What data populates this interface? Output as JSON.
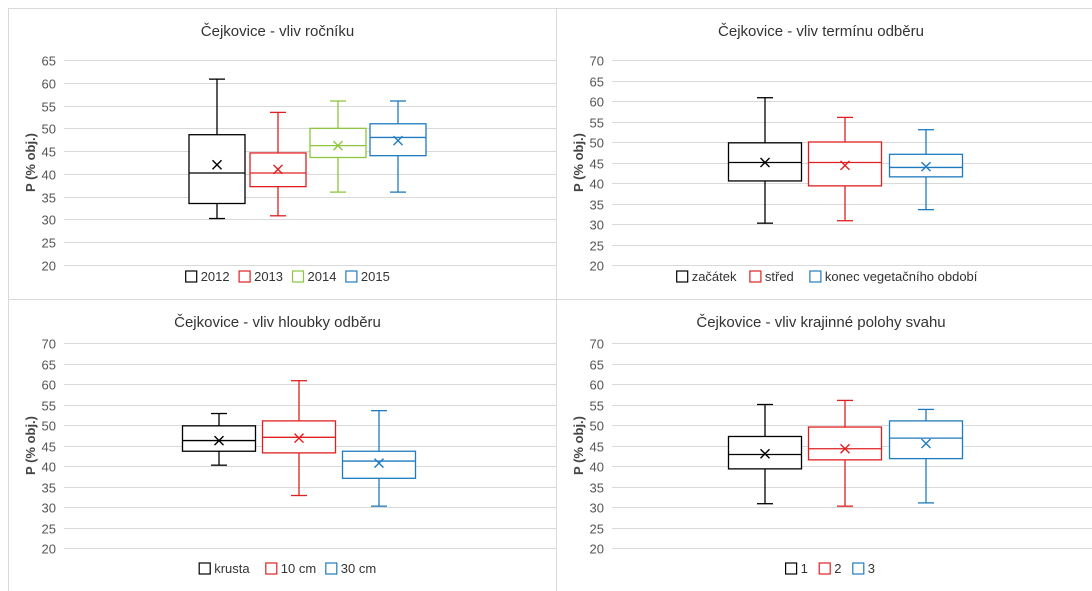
{
  "chart_data": [
    {
      "type": "box",
      "title": "Čejkovice - vliv ročníku",
      "ylabel": "P (% obj.)",
      "xlabel": "",
      "ylim": [
        20,
        65
      ],
      "yticks": [
        20,
        25,
        30,
        35,
        40,
        45,
        50,
        55,
        60,
        65
      ],
      "grid": true,
      "legend": "bottom",
      "series": [
        {
          "name": "2012",
          "color": "#000000",
          "min": 30.2,
          "q1": 33.5,
          "median": 40.2,
          "q3": 48.6,
          "max": 60.8,
          "mean": 42.0
        },
        {
          "name": "2013",
          "color": "#e02020",
          "min": 30.8,
          "q1": 37.2,
          "median": 40.2,
          "q3": 44.6,
          "max": 53.5,
          "mean": 41.0
        },
        {
          "name": "2014",
          "color": "#8dc63f",
          "min": 36.0,
          "q1": 43.6,
          "median": 46.2,
          "q3": 50.0,
          "max": 56.0,
          "mean": 46.2
        },
        {
          "name": "2015",
          "color": "#1f7bbf",
          "min": 36.0,
          "q1": 44.0,
          "median": 48.0,
          "q3": 51.0,
          "max": 56.0,
          "mean": 47.3
        }
      ]
    },
    {
      "type": "box",
      "title": "Čejkovice - vliv termínu odběru",
      "ylabel": "P (% obj.)",
      "xlabel": "",
      "ylim": [
        20,
        70
      ],
      "yticks": [
        20,
        25,
        30,
        35,
        40,
        45,
        50,
        55,
        60,
        65,
        70
      ],
      "grid": true,
      "legend": "bottom",
      "series": [
        {
          "name": "začátek",
          "color": "#000000",
          "min": 30.2,
          "q1": 40.5,
          "median": 45.0,
          "q3": 49.8,
          "max": 60.8,
          "mean": 45.0
        },
        {
          "name": "střed",
          "color": "#e02020",
          "min": 30.8,
          "q1": 39.3,
          "median": 45.0,
          "q3": 50.0,
          "max": 56.0,
          "mean": 44.3
        },
        {
          "name": "konec vegetačního období",
          "color": "#1f7bbf",
          "min": 33.5,
          "q1": 41.5,
          "median": 43.8,
          "q3": 47.0,
          "max": 53.0,
          "mean": 44.0
        }
      ]
    },
    {
      "type": "box",
      "title": "Čejkovice - vliv hloubky odběru",
      "ylabel": "P (% obj.)",
      "xlabel": "",
      "ylim": [
        20,
        70
      ],
      "yticks": [
        20,
        25,
        30,
        35,
        40,
        45,
        50,
        55,
        60,
        65,
        70
      ],
      "grid": true,
      "legend": "bottom",
      "series": [
        {
          "name": "krusta",
          "color": "#000000",
          "min": 40.2,
          "q1": 43.6,
          "median": 46.2,
          "q3": 49.8,
          "max": 52.8,
          "mean": 46.2
        },
        {
          "name": "10 cm",
          "color": "#e02020",
          "min": 32.8,
          "q1": 43.2,
          "median": 47.0,
          "q3": 51.0,
          "max": 60.8,
          "mean": 46.8
        },
        {
          "name": "30 cm",
          "color": "#1f7bbf",
          "min": 30.2,
          "q1": 37.0,
          "median": 41.2,
          "q3": 43.6,
          "max": 53.5,
          "mean": 40.7
        }
      ]
    },
    {
      "type": "box",
      "title": "Čejkovice - vliv krajinné polohy svahu",
      "ylabel": "P (% obj.)",
      "xlabel": "",
      "ylim": [
        20,
        70
      ],
      "yticks": [
        20,
        25,
        30,
        35,
        40,
        45,
        50,
        55,
        60,
        65,
        70
      ],
      "grid": true,
      "legend": "bottom",
      "series": [
        {
          "name": "1",
          "color": "#000000",
          "min": 30.8,
          "q1": 39.3,
          "median": 42.8,
          "q3": 47.2,
          "max": 55.0,
          "mean": 43.0
        },
        {
          "name": "2",
          "color": "#e02020",
          "min": 30.2,
          "q1": 41.5,
          "median": 44.2,
          "q3": 49.5,
          "max": 56.0,
          "mean": 44.2
        },
        {
          "name": "3",
          "color": "#1f7bbf",
          "min": 31.0,
          "q1": 41.8,
          "median": 46.8,
          "q3": 51.0,
          "max": 53.8,
          "mean": 45.5
        }
      ]
    }
  ]
}
